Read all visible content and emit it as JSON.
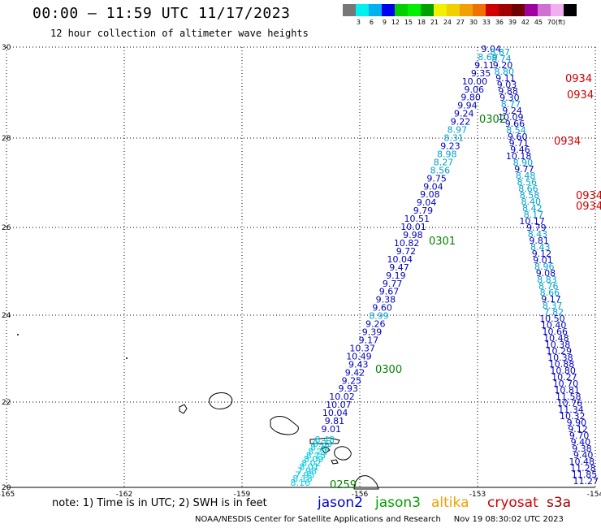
{
  "header": {
    "title": "00:00 – 11:59 UTC 11/17/2023",
    "subtitle": "12 hour collection of altimeter wave heights"
  },
  "colorbar": {
    "unit": "(ft)",
    "colors": [
      "#777777",
      "#00f0f0",
      "#00b0f0",
      "#0000f0",
      "#00d000",
      "#00f000",
      "#00a000",
      "#f0f000",
      "#f0d000",
      "#f0a000",
      "#f07000",
      "#d00000",
      "#a00000",
      "#700000",
      "#a000a0",
      "#d070d0",
      "#f0b0f0",
      "#000000"
    ],
    "labels": [
      "3",
      "6",
      "9",
      "12",
      "15",
      "18",
      "21",
      "24",
      "27",
      "30",
      "33",
      "36",
      "39",
      "42",
      "45",
      "70"
    ]
  },
  "map": {
    "lon_ticks": [
      "-165",
      "-162",
      "-159",
      "-156",
      "-153",
      "-154"
    ],
    "lat_ticks": [
      "30",
      "28",
      "26",
      "24",
      "22",
      "20"
    ],
    "pass_labels": [
      {
        "text": "0302",
        "color": "#008000"
      },
      {
        "text": "0301",
        "color": "#008000"
      },
      {
        "text": "0300",
        "color": "#008000"
      },
      {
        "text": "0259",
        "color": "#008000"
      },
      {
        "text": "0934",
        "color": "#d00000"
      },
      {
        "text": "0934",
        "color": "#d00000"
      },
      {
        "text": "0934",
        "color": "#d00000"
      },
      {
        "text": "0934",
        "color": "#d00000"
      },
      {
        "text": "0934",
        "color": "#d00000"
      }
    ],
    "track1": [
      {
        "v": "9.04",
        "c": "#0000c0"
      },
      {
        "v": "8.69",
        "c": "#00a0d0"
      },
      {
        "v": "9.11",
        "c": "#0000c0"
      },
      {
        "v": "9.35",
        "c": "#0000c0"
      },
      {
        "v": "10.00",
        "c": "#0000c0"
      },
      {
        "v": "9.06",
        "c": "#0000c0"
      },
      {
        "v": "9.80",
        "c": "#0000c0"
      },
      {
        "v": "9.94",
        "c": "#0000c0"
      },
      {
        "v": "9.24",
        "c": "#0000c0"
      },
      {
        "v": "9.22",
        "c": "#0000c0"
      },
      {
        "v": "8.97",
        "c": "#00a0d0"
      },
      {
        "v": "8.31",
        "c": "#00a0d0"
      },
      {
        "v": "9.23",
        "c": "#0000c0"
      },
      {
        "v": "8.98",
        "c": "#00a0d0"
      },
      {
        "v": "8.27",
        "c": "#00a0d0"
      },
      {
        "v": "8.56",
        "c": "#00a0d0"
      },
      {
        "v": "9.75",
        "c": "#0000c0"
      },
      {
        "v": "9.04",
        "c": "#0000c0"
      },
      {
        "v": "9.08",
        "c": "#0000c0"
      },
      {
        "v": "9.04",
        "c": "#0000c0"
      },
      {
        "v": "9.79",
        "c": "#0000c0"
      },
      {
        "v": "10.51",
        "c": "#0000c0"
      },
      {
        "v": "10.01",
        "c": "#0000c0"
      },
      {
        "v": "9.98",
        "c": "#0000c0"
      },
      {
        "v": "10.82",
        "c": "#0000c0"
      },
      {
        "v": "9.72",
        "c": "#0000c0"
      },
      {
        "v": "10.04",
        "c": "#0000c0"
      },
      {
        "v": "9.47",
        "c": "#0000c0"
      },
      {
        "v": "9.19",
        "c": "#0000c0"
      },
      {
        "v": "9.77",
        "c": "#0000c0"
      },
      {
        "v": "9.67",
        "c": "#0000c0"
      },
      {
        "v": "9.38",
        "c": "#0000c0"
      },
      {
        "v": "9.60",
        "c": "#0000c0"
      },
      {
        "v": "8.99",
        "c": "#00a0d0"
      },
      {
        "v": "9.26",
        "c": "#0000c0"
      },
      {
        "v": "9.39",
        "c": "#0000c0"
      },
      {
        "v": "9.17",
        "c": "#0000c0"
      },
      {
        "v": "10.37",
        "c": "#0000c0"
      },
      {
        "v": "10.49",
        "c": "#0000c0"
      },
      {
        "v": "9.43",
        "c": "#0000c0"
      },
      {
        "v": "9.42",
        "c": "#0000c0"
      },
      {
        "v": "9.25",
        "c": "#0000c0"
      },
      {
        "v": "9.93",
        "c": "#0000c0"
      },
      {
        "v": "10.02",
        "c": "#0000c0"
      },
      {
        "v": "10.07",
        "c": "#0000c0"
      },
      {
        "v": "10.04",
        "c": "#0000c0"
      },
      {
        "v": "9.81",
        "c": "#0000c0"
      },
      {
        "v": "9.01",
        "c": "#0000c0"
      }
    ],
    "track1_tail": [
      {
        "v": "8.48",
        "c": "#00c8e0"
      },
      {
        "v": "8.33",
        "c": "#00c8e0"
      },
      {
        "v": "8.32",
        "c": "#00c8e0"
      },
      {
        "v": "8.21",
        "c": "#00c8e0"
      },
      {
        "v": "8.15",
        "c": "#00c8e0"
      },
      {
        "v": "8.09",
        "c": "#00c8e0"
      },
      {
        "v": "8.02",
        "c": "#00c8e0"
      },
      {
        "v": "8.01",
        "c": "#00c8e0"
      },
      {
        "v": "7.98",
        "c": "#00c8e0"
      },
      {
        "v": "7.95",
        "c": "#00c8e0"
      },
      {
        "v": "8.18",
        "c": "#00c8e0"
      },
      {
        "v": "8.16",
        "c": "#00c8e0"
      }
    ],
    "track2": [
      {
        "v": "8.87",
        "c": "#00a0d0"
      },
      {
        "v": "8.74",
        "c": "#00a0d0"
      },
      {
        "v": "9.20",
        "c": "#0000c0"
      },
      {
        "v": "8.80",
        "c": "#00a0d0"
      },
      {
        "v": "9.11",
        "c": "#0000c0"
      },
      {
        "v": "9.03",
        "c": "#0000c0"
      },
      {
        "v": "9.88",
        "c": "#0000c0"
      },
      {
        "v": "9.30",
        "c": "#0000c0"
      },
      {
        "v": "8.77",
        "c": "#00a0d0"
      },
      {
        "v": "9.24",
        "c": "#0000c0"
      },
      {
        "v": "10.09",
        "c": "#0000c0"
      },
      {
        "v": "9.66",
        "c": "#0000c0"
      },
      {
        "v": "8.54",
        "c": "#00a0d0"
      },
      {
        "v": "9.60",
        "c": "#0000c0"
      },
      {
        "v": "9.71",
        "c": "#0000c0"
      },
      {
        "v": "9.46",
        "c": "#0000c0"
      },
      {
        "v": "10.18",
        "c": "#0000c0"
      },
      {
        "v": "8.90",
        "c": "#00a0d0"
      },
      {
        "v": "9.77",
        "c": "#0000c0"
      },
      {
        "v": "8.48",
        "c": "#00a0d0"
      },
      {
        "v": "8.56",
        "c": "#00a0d0"
      },
      {
        "v": "8.66",
        "c": "#00a0d0"
      },
      {
        "v": "8.58",
        "c": "#00a0d0"
      },
      {
        "v": "8.40",
        "c": "#00a0d0"
      },
      {
        "v": "8.42",
        "c": "#00a0d0"
      },
      {
        "v": "8.17",
        "c": "#00a0d0"
      },
      {
        "v": "10.17",
        "c": "#0000c0"
      },
      {
        "v": "9.79",
        "c": "#0000c0"
      },
      {
        "v": "8.43",
        "c": "#00a0d0"
      },
      {
        "v": "9.81",
        "c": "#0000c0"
      },
      {
        "v": "8.43",
        "c": "#00a0d0"
      },
      {
        "v": "9.12",
        "c": "#0000c0"
      },
      {
        "v": "9.01",
        "c": "#0000c0"
      },
      {
        "v": "8.96",
        "c": "#00a0d0"
      },
      {
        "v": "9.08",
        "c": "#0000c0"
      },
      {
        "v": "8.83",
        "c": "#00a0d0"
      },
      {
        "v": "8.76",
        "c": "#00a0d0"
      },
      {
        "v": "8.66",
        "c": "#00a0d0"
      },
      {
        "v": "9.17",
        "c": "#0000c0"
      },
      {
        "v": "8.37",
        "c": "#00a0d0"
      },
      {
        "v": "7.82",
        "c": "#00a0d0"
      },
      {
        "v": "10.50",
        "c": "#0000c0"
      },
      {
        "v": "10.40",
        "c": "#0000c0"
      },
      {
        "v": "10.66",
        "c": "#0000c0"
      },
      {
        "v": "10.48",
        "c": "#0000c0"
      },
      {
        "v": "10.38",
        "c": "#0000c0"
      },
      {
        "v": "10.29",
        "c": "#0000c0"
      },
      {
        "v": "10.38",
        "c": "#0000c0"
      },
      {
        "v": "10.88",
        "c": "#0000c0"
      },
      {
        "v": "10.80",
        "c": "#0000c0"
      },
      {
        "v": "10.27",
        "c": "#0000c0"
      },
      {
        "v": "10.70",
        "c": "#0000c0"
      },
      {
        "v": "10.81",
        "c": "#0000c0"
      },
      {
        "v": "11.58",
        "c": "#0000c0"
      },
      {
        "v": "10.76",
        "c": "#0000c0"
      },
      {
        "v": "11.34",
        "c": "#0000c0"
      },
      {
        "v": "10.32",
        "c": "#0000c0"
      },
      {
        "v": "9.90",
        "c": "#0000c0"
      },
      {
        "v": "9.12",
        "c": "#0000c0"
      },
      {
        "v": "9.70",
        "c": "#0000c0"
      },
      {
        "v": "9.40",
        "c": "#0000c0"
      },
      {
        "v": "9.38",
        "c": "#0000c0"
      },
      {
        "v": "9.40",
        "c": "#0000c0"
      },
      {
        "v": "10.48",
        "c": "#0000c0"
      },
      {
        "v": "11.28",
        "c": "#0000c0"
      },
      {
        "v": "11.85",
        "c": "#0000c0"
      },
      {
        "v": "11.27",
        "c": "#0000c0"
      }
    ]
  },
  "footer": {
    "note": "note:  1) Time is in UTC;  2) SWH is in feet",
    "legend": [
      {
        "name": "jason2",
        "color": "#0000d0"
      },
      {
        "name": "jason3",
        "color": "#00a000"
      },
      {
        "name": "altika",
        "color": "#f0a000"
      },
      {
        "name": "cryosat",
        "color": "#d00000"
      },
      {
        "name": "s3a",
        "color": "#a00000"
      }
    ],
    "credit": "NOAA/NESDIS Center for Satellite Applications and Research",
    "timestamp": "Nov 19 08:30:02 UTC 2023"
  }
}
